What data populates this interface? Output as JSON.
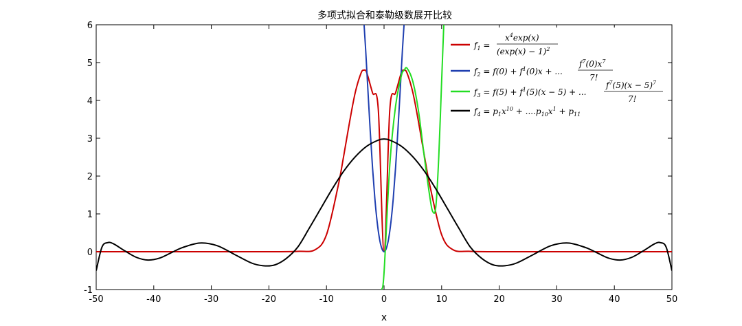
{
  "chart_data": {
    "type": "line",
    "title": "多项式拟合和泰勒级数展开比较",
    "xlabel": "x",
    "ylabel": "",
    "xlim": [
      -50,
      50
    ],
    "ylim": [
      -1,
      6
    ],
    "xticks": [
      -50,
      -40,
      -30,
      -20,
      -10,
      0,
      10,
      20,
      30,
      40,
      50
    ],
    "yticks": [
      -1,
      0,
      1,
      2,
      3,
      4,
      5,
      6
    ],
    "grid": false,
    "legend_position": "top-right",
    "series": [
      {
        "name": "f1 = x^4 exp(x) / (exp(x)-1)^2",
        "color": "#cc0000",
        "x": [
          -50,
          -30,
          -20,
          -15,
          -12,
          -10,
          -8,
          -7,
          -6,
          -5,
          -4,
          -3.5,
          -3,
          -2,
          -1,
          0,
          1,
          2,
          3,
          3.5,
          4,
          5,
          6,
          7,
          8,
          10,
          12,
          15,
          20,
          30,
          50
        ],
        "y": [
          0,
          0,
          0,
          0.01,
          0.05,
          0.45,
          1.72,
          2.54,
          3.42,
          4.21,
          4.72,
          4.8,
          4.73,
          4.2,
          3.76,
          0,
          3.76,
          4.2,
          4.73,
          4.8,
          4.72,
          4.21,
          3.42,
          2.54,
          1.72,
          0.45,
          0.05,
          0.01,
          0,
          0,
          0
        ]
      },
      {
        "name": "f2 = f(0) + f^1(0)x + ... f^7(0)x^7 / 7!",
        "color": "#1f3fb0",
        "x": [
          -3.6,
          -3.2,
          -2.8,
          -2.4,
          -2.0,
          -1.6,
          -1.2,
          -0.8,
          -0.4,
          0,
          0.4,
          0.8,
          1.2,
          1.6,
          2.0,
          2.4,
          2.8,
          3.2,
          3.6
        ],
        "y": [
          6.3,
          5.35,
          4.26,
          3.19,
          2.22,
          1.41,
          0.79,
          0.35,
          0.09,
          0,
          0.09,
          0.35,
          0.79,
          1.41,
          2.22,
          3.19,
          4.26,
          5.35,
          6.3
        ]
      },
      {
        "name": "f3 = f(5) + f^1(5)(x-5) + ... f^7(5)(x-5)^7 / 7!",
        "color": "#22dd22",
        "x": [
          -0.4,
          0,
          1,
          2,
          3,
          3.5,
          4,
          5,
          6,
          7,
          8,
          8.5,
          9,
          9.5,
          10,
          10.4
        ],
        "y": [
          -1.0,
          -0.55,
          2.3,
          3.85,
          4.65,
          4.8,
          4.85,
          4.5,
          3.7,
          2.5,
          1.4,
          1.05,
          1.2,
          2.5,
          4.5,
          6.1
        ]
      },
      {
        "name": "f4 = p1 x^10 + ....p10 x^1 + p11",
        "color": "#000000",
        "x": [
          -50,
          -49,
          -48,
          -47,
          -45,
          -43,
          -41,
          -39,
          -37,
          -35,
          -32,
          -29,
          -26,
          -23,
          -21,
          -19,
          -17,
          -15,
          -13,
          -11,
          -9,
          -7,
          -5,
          -3,
          -1,
          0,
          1,
          3,
          5,
          7,
          9,
          11,
          13,
          15,
          17,
          19,
          21,
          23,
          26,
          29,
          32,
          35,
          37,
          39,
          41,
          43,
          45,
          47,
          48,
          49,
          50
        ],
        "y": [
          -0.5,
          0.12,
          0.24,
          0.21,
          0.02,
          -0.15,
          -0.22,
          -0.17,
          -0.03,
          0.11,
          0.23,
          0.16,
          -0.07,
          -0.3,
          -0.37,
          -0.35,
          -0.18,
          0.12,
          0.62,
          1.14,
          1.66,
          2.13,
          2.51,
          2.79,
          2.95,
          2.98,
          2.95,
          2.79,
          2.51,
          2.13,
          1.66,
          1.14,
          0.62,
          0.12,
          -0.18,
          -0.35,
          -0.37,
          -0.3,
          -0.07,
          0.16,
          0.23,
          0.11,
          -0.03,
          -0.17,
          -0.22,
          -0.15,
          0.02,
          0.21,
          0.24,
          0.12,
          -0.5
        ]
      }
    ]
  }
}
